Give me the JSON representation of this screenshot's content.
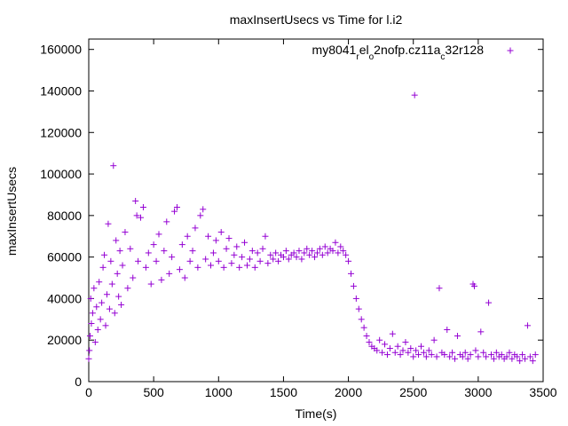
{
  "chart_data": {
    "type": "scatter",
    "title": "maxInsertUsecs vs Time for l.i2",
    "xlabel": "Time(s)",
    "ylabel": "maxInsertUsecs",
    "xlim": [
      0,
      3500
    ],
    "ylim": [
      0,
      165000
    ],
    "x_ticks": [
      0,
      500,
      1000,
      1500,
      2000,
      2500,
      3000,
      3500
    ],
    "y_ticks": [
      0,
      20000,
      40000,
      60000,
      80000,
      100000,
      120000,
      140000,
      160000
    ],
    "grid": false,
    "legend_position": "top-right",
    "marker": "+",
    "colors": {
      "series": "#9400d3"
    },
    "legend": {
      "parts": [
        {
          "text": "my8041",
          "shift": "none"
        },
        {
          "text": "r",
          "shift": "sub"
        },
        {
          "text": "el",
          "shift": "none"
        },
        {
          "text": "o",
          "shift": "sub"
        },
        {
          "text": "2nofp.cz11a",
          "shift": "none"
        },
        {
          "text": "c",
          "shift": "sub"
        },
        {
          "text": "32r128",
          "shift": "none"
        }
      ]
    },
    "series": [
      {
        "name": "my8041_rel_o2nofp.cz11a_c32r128",
        "points": [
          [
            0,
            11000
          ],
          [
            5,
            15000
          ],
          [
            10,
            22000
          ],
          [
            15,
            40000
          ],
          [
            20,
            28000
          ],
          [
            30,
            33000
          ],
          [
            40,
            45000
          ],
          [
            50,
            19000
          ],
          [
            60,
            36000
          ],
          [
            70,
            25000
          ],
          [
            80,
            48000
          ],
          [
            90,
            30000
          ],
          [
            100,
            38000
          ],
          [
            110,
            55000
          ],
          [
            120,
            61000
          ],
          [
            130,
            27000
          ],
          [
            140,
            42000
          ],
          [
            150,
            76000
          ],
          [
            160,
            35000
          ],
          [
            170,
            58000
          ],
          [
            180,
            47000
          ],
          [
            190,
            104000
          ],
          [
            200,
            33000
          ],
          [
            210,
            68000
          ],
          [
            220,
            52000
          ],
          [
            230,
            41000
          ],
          [
            240,
            63000
          ],
          [
            250,
            37000
          ],
          [
            260,
            56000
          ],
          [
            280,
            72000
          ],
          [
            300,
            45000
          ],
          [
            320,
            64000
          ],
          [
            340,
            50000
          ],
          [
            360,
            87000
          ],
          [
            370,
            80000
          ],
          [
            380,
            58000
          ],
          [
            400,
            79000
          ],
          [
            420,
            84000
          ],
          [
            440,
            55000
          ],
          [
            460,
            62000
          ],
          [
            480,
            47000
          ],
          [
            500,
            66000
          ],
          [
            520,
            58000
          ],
          [
            540,
            71000
          ],
          [
            560,
            49000
          ],
          [
            580,
            63000
          ],
          [
            600,
            77000
          ],
          [
            620,
            52000
          ],
          [
            640,
            60000
          ],
          [
            660,
            82000
          ],
          [
            680,
            84000
          ],
          [
            700,
            54000
          ],
          [
            720,
            66000
          ],
          [
            740,
            50000
          ],
          [
            760,
            70000
          ],
          [
            780,
            58000
          ],
          [
            800,
            63000
          ],
          [
            820,
            74000
          ],
          [
            840,
            55000
          ],
          [
            860,
            80000
          ],
          [
            880,
            83000
          ],
          [
            900,
            59000
          ],
          [
            920,
            70000
          ],
          [
            940,
            56000
          ],
          [
            960,
            62000
          ],
          [
            980,
            68000
          ],
          [
            1000,
            58000
          ],
          [
            1020,
            72000
          ],
          [
            1040,
            55000
          ],
          [
            1060,
            64000
          ],
          [
            1080,
            69000
          ],
          [
            1100,
            57000
          ],
          [
            1120,
            61000
          ],
          [
            1140,
            65000
          ],
          [
            1160,
            55000
          ],
          [
            1180,
            60000
          ],
          [
            1200,
            67000
          ],
          [
            1220,
            56000
          ],
          [
            1240,
            59000
          ],
          [
            1260,
            63000
          ],
          [
            1280,
            55000
          ],
          [
            1300,
            62000
          ],
          [
            1320,
            58000
          ],
          [
            1340,
            64000
          ],
          [
            1360,
            70000
          ],
          [
            1380,
            57000
          ],
          [
            1400,
            61000
          ],
          [
            1420,
            59000
          ],
          [
            1440,
            62000
          ],
          [
            1460,
            58000
          ],
          [
            1480,
            61000
          ],
          [
            1500,
            60000
          ],
          [
            1520,
            63000
          ],
          [
            1540,
            59000
          ],
          [
            1560,
            61000
          ],
          [
            1580,
            62000
          ],
          [
            1600,
            60000
          ],
          [
            1620,
            63000
          ],
          [
            1640,
            59000
          ],
          [
            1660,
            62000
          ],
          [
            1680,
            64000
          ],
          [
            1700,
            61000
          ],
          [
            1720,
            63000
          ],
          [
            1740,
            60000
          ],
          [
            1760,
            62000
          ],
          [
            1780,
            64000
          ],
          [
            1800,
            61000
          ],
          [
            1820,
            65000
          ],
          [
            1840,
            62000
          ],
          [
            1860,
            64000
          ],
          [
            1880,
            63000
          ],
          [
            1900,
            67000
          ],
          [
            1920,
            62000
          ],
          [
            1940,
            65000
          ],
          [
            1960,
            63000
          ],
          [
            1980,
            61000
          ],
          [
            2000,
            58000
          ],
          [
            2020,
            52000
          ],
          [
            2040,
            46000
          ],
          [
            2060,
            40000
          ],
          [
            2080,
            35000
          ],
          [
            2100,
            30000
          ],
          [
            2120,
            26000
          ],
          [
            2140,
            22000
          ],
          [
            2160,
            19000
          ],
          [
            2180,
            17000
          ],
          [
            2200,
            16000
          ],
          [
            2220,
            15000
          ],
          [
            2240,
            20000
          ],
          [
            2260,
            14000
          ],
          [
            2280,
            18000
          ],
          [
            2300,
            13000
          ],
          [
            2320,
            16000
          ],
          [
            2340,
            23000
          ],
          [
            2360,
            14000
          ],
          [
            2380,
            17000
          ],
          [
            2400,
            13000
          ],
          [
            2420,
            15000
          ],
          [
            2440,
            19000
          ],
          [
            2460,
            14000
          ],
          [
            2480,
            16000
          ],
          [
            2500,
            12000
          ],
          [
            2510,
            138000
          ],
          [
            2520,
            15000
          ],
          [
            2540,
            13000
          ],
          [
            2560,
            17000
          ],
          [
            2580,
            14000
          ],
          [
            2600,
            12000
          ],
          [
            2620,
            15000
          ],
          [
            2640,
            13000
          ],
          [
            2660,
            20000
          ],
          [
            2680,
            12000
          ],
          [
            2700,
            45000
          ],
          [
            2720,
            14000
          ],
          [
            2740,
            13000
          ],
          [
            2760,
            25000
          ],
          [
            2780,
            12000
          ],
          [
            2800,
            14000
          ],
          [
            2820,
            11000
          ],
          [
            2840,
            22000
          ],
          [
            2860,
            13000
          ],
          [
            2880,
            12000
          ],
          [
            2900,
            14000
          ],
          [
            2920,
            11000
          ],
          [
            2940,
            13000
          ],
          [
            2960,
            47000
          ],
          [
            2970,
            46000
          ],
          [
            2980,
            15000
          ],
          [
            3000,
            12000
          ],
          [
            3020,
            24000
          ],
          [
            3040,
            14000
          ],
          [
            3060,
            12000
          ],
          [
            3080,
            38000
          ],
          [
            3100,
            13000
          ],
          [
            3120,
            11000
          ],
          [
            3140,
            14000
          ],
          [
            3160,
            12000
          ],
          [
            3180,
            13000
          ],
          [
            3200,
            11000
          ],
          [
            3220,
            12000
          ],
          [
            3240,
            14000
          ],
          [
            3260,
            11000
          ],
          [
            3280,
            13000
          ],
          [
            3300,
            12000
          ],
          [
            3320,
            10000
          ],
          [
            3340,
            13000
          ],
          [
            3360,
            11000
          ],
          [
            3380,
            27000
          ],
          [
            3400,
            12000
          ],
          [
            3420,
            10000
          ],
          [
            3440,
            13000
          ]
        ]
      }
    ]
  }
}
